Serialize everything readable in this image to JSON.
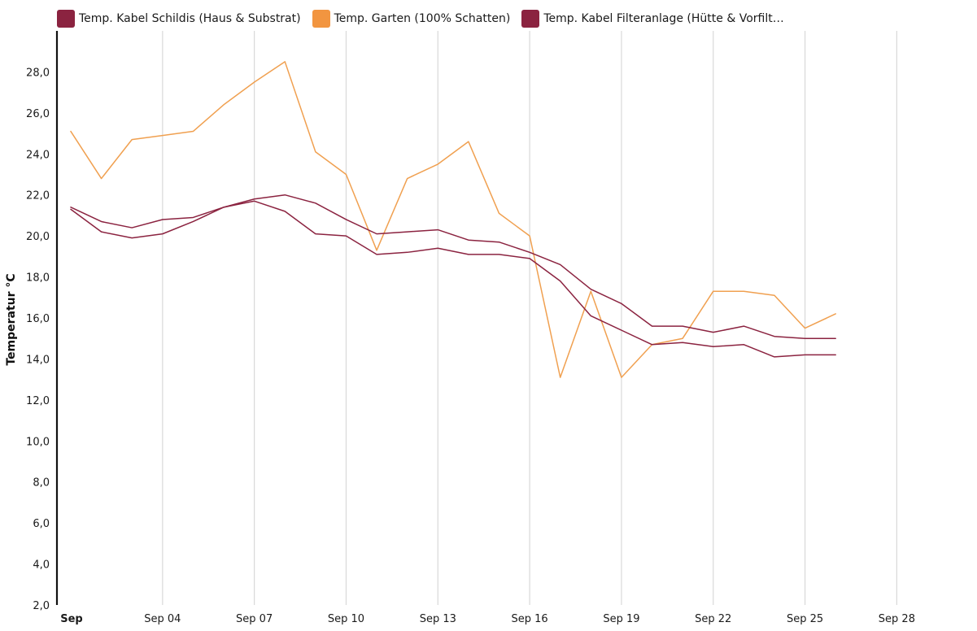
{
  "chart_data": {
    "type": "line",
    "title": "",
    "ylabel": "Temperatur °C",
    "xlabel": "",
    "ylim": [
      2,
      30
    ],
    "yticks": [
      "2,0",
      "4,0",
      "6,0",
      "8,0",
      "10,0",
      "12,0",
      "14,0",
      "16,0",
      "18,0",
      "20,0",
      "22,0",
      "24,0",
      "26,0",
      "28,0"
    ],
    "xlim": [
      "2024-09-01",
      "2024-09-29"
    ],
    "xticks": [
      {
        "date": "2024-09-01",
        "label": "Sep",
        "bold": true
      },
      {
        "date": "2024-09-04",
        "label": "Sep 04"
      },
      {
        "date": "2024-09-07",
        "label": "Sep 07"
      },
      {
        "date": "2024-09-10",
        "label": "Sep 10"
      },
      {
        "date": "2024-09-13",
        "label": "Sep 13"
      },
      {
        "date": "2024-09-16",
        "label": "Sep 16"
      },
      {
        "date": "2024-09-19",
        "label": "Sep 19"
      },
      {
        "date": "2024-09-22",
        "label": "Sep 22"
      },
      {
        "date": "2024-09-25",
        "label": "Sep 25"
      },
      {
        "date": "2024-09-28",
        "label": "Sep 28"
      }
    ],
    "grid": {
      "vertical": true,
      "horizontal": false
    },
    "legend_position": "top-left",
    "x": [
      "2024-09-01",
      "2024-09-02",
      "2024-09-03",
      "2024-09-04",
      "2024-09-05",
      "2024-09-06",
      "2024-09-07",
      "2024-09-08",
      "2024-09-09",
      "2024-09-10",
      "2024-09-11",
      "2024-09-12",
      "2024-09-13",
      "2024-09-14",
      "2024-09-15",
      "2024-09-16",
      "2024-09-17",
      "2024-09-18",
      "2024-09-19",
      "2024-09-20",
      "2024-09-21",
      "2024-09-22",
      "2024-09-23",
      "2024-09-24",
      "2024-09-25",
      "2024-09-26"
    ],
    "series": [
      {
        "name": "Temp. Kabel Schildis (Haus & Substrat)",
        "color": "#8b2340",
        "legend_color": "#8b2340",
        "values": [
          21.4,
          20.7,
          20.4,
          20.8,
          20.9,
          21.4,
          21.8,
          22.0,
          21.6,
          20.8,
          20.1,
          20.2,
          20.3,
          19.8,
          19.7,
          19.2,
          18.6,
          17.4,
          16.7,
          15.6,
          15.6,
          15.3,
          15.6,
          15.1,
          15.0,
          15.0
        ]
      },
      {
        "name": "Temp. Garten (100% Schatten)",
        "color": "#f0a050",
        "legend_color": "#f29540",
        "values": [
          25.1,
          22.8,
          24.7,
          24.9,
          25.1,
          26.4,
          27.5,
          28.5,
          24.1,
          23.0,
          19.3,
          22.8,
          23.5,
          24.6,
          21.1,
          20.0,
          13.1,
          17.3,
          13.1,
          14.7,
          15.0,
          17.3,
          17.3,
          17.1,
          15.5,
          16.2
        ]
      },
      {
        "name": "Temp. Kabel Filteranlage (Hütte & Vorfilter)",
        "legend_label": "Temp. Kabel Filteranlage (Hütte & Vorfilte...",
        "color": "#8b2340",
        "legend_color": "#8b2340",
        "values": [
          21.3,
          20.2,
          19.9,
          20.1,
          20.7,
          21.4,
          21.7,
          21.2,
          20.1,
          20.0,
          19.1,
          19.2,
          19.4,
          19.1,
          19.1,
          18.9,
          17.8,
          16.1,
          15.4,
          14.7,
          14.8,
          14.6,
          14.7,
          14.1,
          14.2,
          14.2
        ]
      }
    ]
  }
}
